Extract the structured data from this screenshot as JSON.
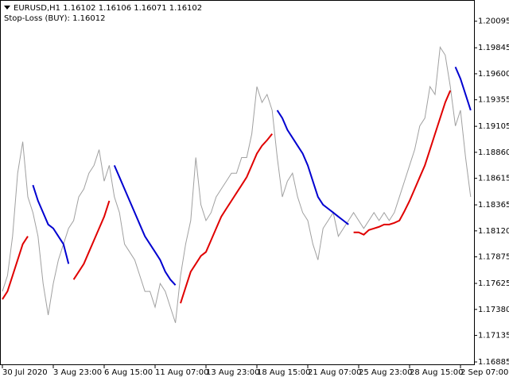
{
  "chart_data": {
    "type": "line",
    "title": "EURUSD,H1  1.16102 1.16106 1.16071 1.16102",
    "subtitle": "Stop-Loss (BUY): 1.16012",
    "categories": [
      "30 Jul 2020",
      null,
      null,
      null,
      null,
      null,
      null,
      null,
      null,
      null,
      "3 Aug 23:00",
      null,
      null,
      null,
      null,
      null,
      null,
      null,
      null,
      null,
      "6 Aug 15:00",
      null,
      null,
      null,
      null,
      null,
      null,
      null,
      null,
      null,
      "11 Aug 07:00",
      null,
      null,
      null,
      null,
      null,
      null,
      null,
      null,
      null,
      "13 Aug 23:00",
      null,
      null,
      null,
      null,
      null,
      null,
      null,
      null,
      null,
      "18 Aug 15:00",
      null,
      null,
      null,
      null,
      null,
      null,
      null,
      null,
      null,
      "21 Aug 07:00",
      null,
      null,
      null,
      null,
      null,
      null,
      null,
      null,
      null,
      "25 Aug 23:00",
      null,
      null,
      null,
      null,
      null,
      null,
      null,
      null,
      null,
      "28 Aug 15:00",
      null,
      null,
      null,
      null,
      null,
      null,
      null,
      null,
      null,
      "2 Sep 07:00",
      null,
      null
    ],
    "series": [
      {
        "color": "#a0a0a0",
        "values": [
          1.1755,
          1.17698,
          1.18069,
          1.18663,
          1.1896,
          1.1844,
          1.18292,
          1.18069,
          1.17624,
          1.17327,
          1.17624,
          1.17846,
          1.17995,
          1.18143,
          1.18217,
          1.1844,
          1.18514,
          1.18663,
          1.18737,
          1.18885,
          1.18588,
          1.18737,
          1.1844,
          1.18292,
          1.17995,
          1.17921,
          1.17846,
          1.17698,
          1.1755,
          1.1755,
          1.17401,
          1.17624,
          1.1755,
          1.17401,
          1.17253,
          1.17698,
          1.17995,
          1.18217,
          1.18811,
          1.18366,
          1.18217,
          1.18292,
          1.1844,
          1.18514,
          1.18588,
          1.18663,
          1.18663,
          1.18811,
          1.18811,
          1.19034,
          1.19479,
          1.1933,
          1.19405,
          1.19256,
          1.18811,
          1.1844,
          1.18588,
          1.18663,
          1.1844,
          1.18292,
          1.18217,
          1.17995,
          1.17846,
          1.18143,
          1.18217,
          1.18292,
          1.18069,
          1.18143,
          1.18217,
          1.18292,
          1.18217,
          1.18143,
          1.18217,
          1.18292,
          1.18217,
          1.18292,
          1.18217,
          1.18292,
          1.1844,
          1.18588,
          1.18737,
          1.18885,
          1.19108,
          1.19182,
          1.19479,
          1.19405,
          1.1985,
          1.19776,
          1.19479,
          1.19108,
          1.19256,
          1.18811,
          1.1844
        ]
      },
      {
        "color": "#e00000",
        "values": [
          1.17475,
          1.1755,
          1.17698,
          1.17846,
          1.17995,
          1.18069,
          null,
          null,
          null,
          null,
          null,
          null,
          null,
          null,
          1.17661,
          1.17735,
          1.17809,
          1.17921,
          1.18032,
          1.18143,
          1.18254,
          1.18403,
          null,
          null,
          null,
          null,
          null,
          null,
          null,
          null,
          null,
          null,
          null,
          null,
          null,
          1.17438,
          1.17587,
          1.17735,
          1.17809,
          1.17884,
          1.17921,
          1.18032,
          1.18143,
          1.18254,
          1.18329,
          1.18403,
          1.18477,
          1.18551,
          1.18626,
          1.18737,
          1.18848,
          1.18922,
          1.18974,
          1.19034,
          null,
          null,
          null,
          null,
          null,
          null,
          null,
          null,
          null,
          null,
          null,
          null,
          null,
          null,
          null,
          1.18106,
          1.18106,
          1.18084,
          1.18128,
          1.18143,
          1.18158,
          1.1818,
          1.1818,
          1.18195,
          1.18217,
          1.18306,
          1.18403,
          1.18514,
          1.18626,
          1.18737,
          1.18885,
          1.19034,
          1.19182,
          1.1933,
          1.19442,
          null,
          null,
          null,
          null
        ]
      },
      {
        "color": "#0000d0",
        "values": [
          null,
          null,
          null,
          null,
          null,
          null,
          1.18551,
          1.18403,
          1.18292,
          1.1818,
          1.18143,
          1.18069,
          1.17995,
          1.17809,
          null,
          null,
          null,
          null,
          null,
          null,
          null,
          null,
          1.18737,
          1.18626,
          1.18514,
          1.18403,
          1.18292,
          1.1818,
          1.18069,
          1.17995,
          1.17921,
          1.17846,
          1.17735,
          1.17661,
          1.17609,
          null,
          null,
          null,
          null,
          null,
          null,
          null,
          null,
          null,
          null,
          null,
          null,
          null,
          null,
          null,
          null,
          null,
          null,
          null,
          1.19256,
          1.19182,
          1.19071,
          1.18997,
          1.18922,
          1.18848,
          1.18737,
          1.18588,
          1.1844,
          1.18366,
          1.18329,
          1.18292,
          1.18254,
          1.18217,
          1.1818,
          null,
          null,
          null,
          null,
          null,
          null,
          null,
          null,
          null,
          null,
          null,
          null,
          null,
          null,
          null,
          null,
          null,
          null,
          null,
          null,
          1.19664,
          1.19553,
          1.19405,
          1.19256
        ]
      }
    ],
    "ylim": [
      1.16855,
      1.20295
    ],
    "yticks": [
      1.20095,
      1.19845,
      {
        "value": 1.196,
        "label": "1.19600"
      },
      1.19355,
      1.19105,
      {
        "value": 1.1886,
        "label": "1.18860"
      },
      1.18615,
      1.18365,
      {
        "value": 1.1812,
        "label": "1.18120"
      },
      1.17875,
      1.17625,
      {
        "value": 1.1738,
        "label": "1.17380"
      },
      1.17135,
      1.16885
    ]
  }
}
